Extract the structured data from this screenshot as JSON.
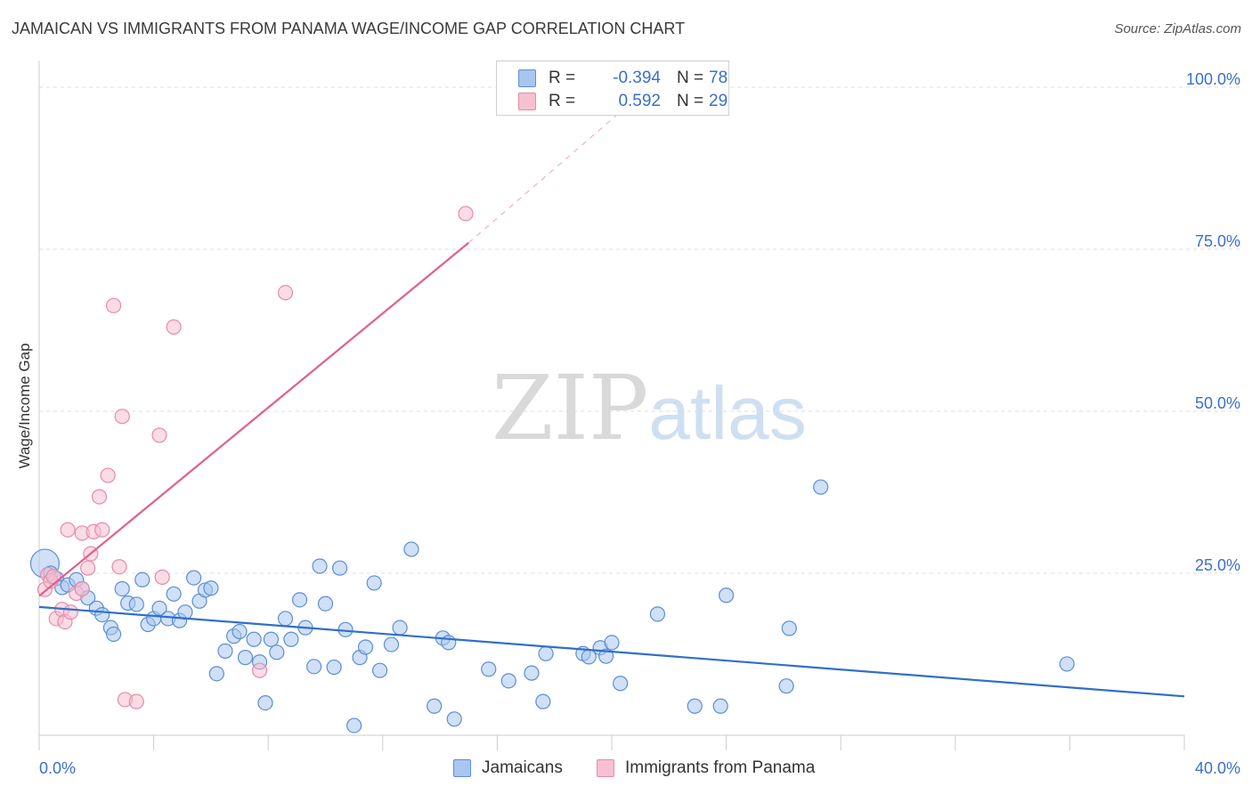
{
  "title": "JAMAICAN VS IMMIGRANTS FROM PANAMA WAGE/INCOME GAP CORRELATION CHART",
  "source": "Source: ZipAtlas.com",
  "watermark": {
    "zip": "ZIP",
    "atlas": "atlas"
  },
  "colors": {
    "blue_fill": "#a9c6ee",
    "blue_stroke": "#5b8ed6",
    "blue_line": "#2f6fcc",
    "pink_fill": "#f6c0d0",
    "pink_stroke": "#e88aa8",
    "pink_line": "#e0608a",
    "axis_label": "#3b6fc9",
    "grid": "#dddddd"
  },
  "legend": {
    "rows": [
      {
        "r_label": "R =",
        "r_value": "-0.394",
        "n_label": "N =",
        "n_value": "78"
      },
      {
        "r_label": "R =",
        "r_value": "0.592",
        "n_label": "N =",
        "n_value": "29"
      }
    ]
  },
  "bottom_legend": [
    "Jamaicans",
    "Immigrants from Panama"
  ],
  "chart_data": {
    "type": "scatter",
    "ylabel": "Wage/Income Gap",
    "xlim": [
      0,
      40
    ],
    "ylim": [
      0,
      100
    ],
    "x_tick_labels": [
      "0.0%",
      "40.0%"
    ],
    "y_ticks": [
      25,
      50,
      75,
      100
    ],
    "y_tick_labels": [
      "25.0%",
      "50.0%",
      "75.0%",
      "100.0%"
    ],
    "grid": true,
    "series": [
      {
        "name": "Jamaicans",
        "color": "#a9c6ee",
        "trend": {
          "x0": 0,
          "y0": 19.8,
          "x1": 40,
          "y1": 6.0
        },
        "points": [
          [
            0.2,
            26.5
          ],
          [
            0.4,
            25.0
          ],
          [
            0.6,
            24.2
          ],
          [
            0.8,
            22.8
          ],
          [
            1.0,
            23.2
          ],
          [
            1.3,
            24.0
          ],
          [
            1.5,
            22.6
          ],
          [
            1.7,
            21.2
          ],
          [
            2.0,
            19.6
          ],
          [
            2.2,
            18.6
          ],
          [
            2.5,
            16.6
          ],
          [
            2.6,
            15.6
          ],
          [
            2.9,
            22.6
          ],
          [
            3.1,
            20.4
          ],
          [
            3.4,
            20.2
          ],
          [
            3.6,
            24.0
          ],
          [
            3.8,
            17.1
          ],
          [
            4.0,
            18.0
          ],
          [
            4.2,
            19.6
          ],
          [
            4.5,
            18.0
          ],
          [
            4.7,
            21.8
          ],
          [
            4.9,
            17.7
          ],
          [
            5.1,
            19.0
          ],
          [
            5.4,
            24.3
          ],
          [
            5.6,
            20.7
          ],
          [
            5.8,
            22.4
          ],
          [
            6.0,
            22.7
          ],
          [
            6.2,
            9.5
          ],
          [
            6.5,
            13.0
          ],
          [
            6.8,
            15.3
          ],
          [
            7.0,
            16.0
          ],
          [
            7.2,
            12.0
          ],
          [
            7.5,
            14.8
          ],
          [
            7.7,
            11.3
          ],
          [
            7.9,
            5.0
          ],
          [
            8.1,
            14.8
          ],
          [
            8.3,
            12.8
          ],
          [
            8.6,
            18.0
          ],
          [
            8.8,
            14.8
          ],
          [
            9.1,
            20.9
          ],
          [
            9.3,
            16.6
          ],
          [
            9.6,
            10.6
          ],
          [
            9.8,
            26.1
          ],
          [
            10.0,
            20.3
          ],
          [
            10.3,
            10.5
          ],
          [
            10.5,
            25.8
          ],
          [
            10.7,
            16.3
          ],
          [
            11.0,
            1.5
          ],
          [
            11.2,
            12.0
          ],
          [
            11.4,
            13.6
          ],
          [
            11.7,
            23.5
          ],
          [
            11.9,
            10.0
          ],
          [
            12.3,
            14.0
          ],
          [
            12.6,
            16.6
          ],
          [
            13.0,
            28.7
          ],
          [
            13.8,
            4.5
          ],
          [
            14.1,
            15.0
          ],
          [
            14.3,
            14.3
          ],
          [
            14.5,
            2.5
          ],
          [
            15.7,
            10.2
          ],
          [
            16.4,
            8.4
          ],
          [
            17.2,
            9.6
          ],
          [
            17.6,
            5.2
          ],
          [
            17.7,
            12.6
          ],
          [
            19.0,
            12.6
          ],
          [
            19.2,
            12.1
          ],
          [
            19.6,
            13.5
          ],
          [
            19.8,
            12.2
          ],
          [
            20.0,
            14.3
          ],
          [
            20.3,
            8.0
          ],
          [
            21.6,
            18.7
          ],
          [
            22.9,
            4.5
          ],
          [
            23.8,
            4.5
          ],
          [
            24.0,
            21.6
          ],
          [
            26.1,
            7.6
          ],
          [
            26.2,
            16.5
          ],
          [
            27.3,
            38.3
          ],
          [
            35.9,
            11.0
          ]
        ]
      },
      {
        "name": "Immigrants from Panama",
        "color": "#f6c0d0",
        "trend": {
          "x0": 0,
          "y0": 21.5,
          "x1": 15.0,
          "y1": 76.0
        },
        "trend_dashed": {
          "x0": 15.0,
          "y0": 76.0,
          "x1": 21.3,
          "y1": 100.0
        },
        "points": [
          [
            0.2,
            22.5
          ],
          [
            0.3,
            24.8
          ],
          [
            0.4,
            23.8
          ],
          [
            0.5,
            24.5
          ],
          [
            0.6,
            18.0
          ],
          [
            0.8,
            19.4
          ],
          [
            0.9,
            17.5
          ],
          [
            1.0,
            31.7
          ],
          [
            1.1,
            19.0
          ],
          [
            1.3,
            21.9
          ],
          [
            1.5,
            22.6
          ],
          [
            1.5,
            31.2
          ],
          [
            1.7,
            25.8
          ],
          [
            1.8,
            28.0
          ],
          [
            1.9,
            31.4
          ],
          [
            2.1,
            36.8
          ],
          [
            2.2,
            31.7
          ],
          [
            2.4,
            40.1
          ],
          [
            2.6,
            66.3
          ],
          [
            2.8,
            26.0
          ],
          [
            2.9,
            49.2
          ],
          [
            3.0,
            5.5
          ],
          [
            3.4,
            5.2
          ],
          [
            4.2,
            46.3
          ],
          [
            4.3,
            24.4
          ],
          [
            4.7,
            63.0
          ],
          [
            7.7,
            10.0
          ],
          [
            8.6,
            68.3
          ],
          [
            14.9,
            80.5
          ]
        ]
      }
    ]
  }
}
